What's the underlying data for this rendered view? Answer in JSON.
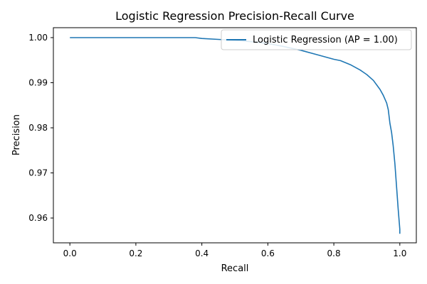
{
  "chart_data": {
    "type": "line",
    "title": "Logistic Regression Precision-Recall Curve",
    "xlabel": "Recall",
    "ylabel": "Precision",
    "xlim": [
      -0.05,
      1.05
    ],
    "ylim": [
      0.9545,
      1.0022
    ],
    "xticks": [
      0.0,
      0.2,
      0.4,
      0.6,
      0.8,
      1.0
    ],
    "xtick_labels": [
      "0.0",
      "0.2",
      "0.4",
      "0.6",
      "0.8",
      "1.0"
    ],
    "yticks": [
      0.96,
      0.97,
      0.98,
      0.99,
      1.0
    ],
    "ytick_labels": [
      "0.96",
      "0.97",
      "0.98",
      "0.99",
      "1.00"
    ],
    "grid": false,
    "legend_position": "upper right",
    "series": [
      {
        "name": "Logistic Regression (AP = 1.00)",
        "color": "#1f77b4",
        "x": [
          0.0,
          0.1,
          0.2,
          0.3,
          0.38,
          0.4,
          0.45,
          0.5,
          0.55,
          0.6,
          0.65,
          0.7,
          0.75,
          0.8,
          0.82,
          0.85,
          0.88,
          0.9,
          0.92,
          0.94,
          0.95,
          0.96,
          0.965,
          0.97,
          0.975,
          0.98,
          0.985,
          0.99,
          0.995,
          1.0,
          1.0
        ],
        "y": [
          1.0,
          1.0,
          1.0,
          1.0,
          1.0,
          0.9998,
          0.9996,
          0.9994,
          0.9991,
          0.9987,
          0.998,
          0.9972,
          0.9962,
          0.9952,
          0.9949,
          0.994,
          0.9928,
          0.9918,
          0.9905,
          0.9885,
          0.9872,
          0.9855,
          0.984,
          0.981,
          0.979,
          0.976,
          0.972,
          0.967,
          0.962,
          0.9575,
          0.9565
        ]
      }
    ]
  }
}
